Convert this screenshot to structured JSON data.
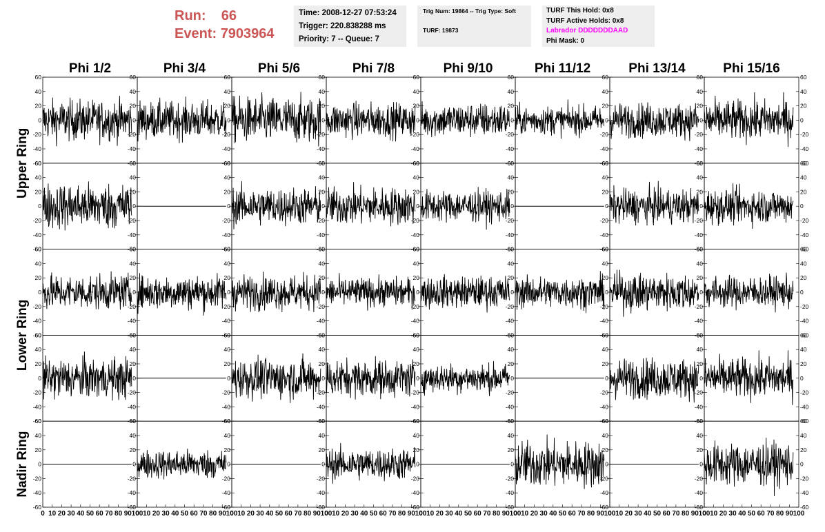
{
  "header": {
    "run_label": "Run:",
    "run_value": "66",
    "event_label": "Event:",
    "event_value": "7903964",
    "time": "Time: 2008-12-27 07:53:24",
    "trigger": "Trigger: 220.838288 ms",
    "priority": "Priority: 7 -- Queue: 7",
    "trig_num": "Trig Num: 19864 -- Trig Type: Soft",
    "turf": "TURF: 19873",
    "turf_this_hold": "TURF This Hold: 0x8",
    "turf_active_holds": "TURF Active Holds: 0x8",
    "labrador": "Labrador DDDDDDDAAD",
    "phi_mask": "Phi Mask: 0",
    "colors": {
      "run": "#cc5555",
      "labrador": "#ff00ff",
      "box_bg": "#eeeeee"
    }
  },
  "chart_data": {
    "type": "line",
    "columns": [
      "Phi 1/2",
      "Phi 3/4",
      "Phi 5/6",
      "Phi 7/8",
      "Phi 9/10",
      "Phi 11/12",
      "Phi 13/14",
      "Phi 15/16"
    ],
    "ring_labels": [
      "Upper Ring",
      "Lower Ring",
      "Nadir Ring"
    ],
    "rows": 5,
    "xlim": [
      0,
      100
    ],
    "ylim": [
      -60,
      60
    ],
    "x_ticks": [
      0,
      10,
      20,
      30,
      40,
      50,
      60,
      70,
      80,
      90,
      100
    ],
    "y_ticks": [
      -60,
      -40,
      -20,
      0,
      20,
      40,
      60
    ],
    "y_tick_labels": [
      "-60",
      "-40",
      "-20",
      "0",
      "20",
      "40",
      "60"
    ],
    "x_tick_labels": [
      "0",
      "10",
      "20",
      "30",
      "40",
      "50",
      "60",
      "70",
      "80",
      "90",
      "100"
    ],
    "waveform_x_range": [
      0,
      94
    ],
    "grid": false,
    "panels": [
      [
        {
          "active": true,
          "amp": 14
        },
        {
          "active": true,
          "amp": 13
        },
        {
          "active": true,
          "amp": 16
        },
        {
          "active": true,
          "amp": 12
        },
        {
          "active": true,
          "amp": 12
        },
        {
          "active": true,
          "amp": 10
        },
        {
          "active": true,
          "amp": 12
        },
        {
          "active": true,
          "amp": 14
        }
      ],
      [
        {
          "active": true,
          "amp": 16
        },
        {
          "active": false,
          "amp": 0
        },
        {
          "active": true,
          "amp": 13
        },
        {
          "active": true,
          "amp": 13
        },
        {
          "active": true,
          "amp": 11
        },
        {
          "active": false,
          "amp": 0
        },
        {
          "active": true,
          "amp": 12
        },
        {
          "active": true,
          "amp": 12
        }
      ],
      [
        {
          "active": true,
          "amp": 12
        },
        {
          "active": true,
          "amp": 12
        },
        {
          "active": true,
          "amp": 12
        },
        {
          "active": true,
          "amp": 10
        },
        {
          "active": true,
          "amp": 11
        },
        {
          "active": true,
          "amp": 11
        },
        {
          "active": true,
          "amp": 13
        },
        {
          "active": true,
          "amp": 11
        }
      ],
      [
        {
          "active": true,
          "amp": 14
        },
        {
          "active": false,
          "amp": 0
        },
        {
          "active": true,
          "amp": 14
        },
        {
          "active": true,
          "amp": 13
        },
        {
          "active": true,
          "amp": 10
        },
        {
          "active": false,
          "amp": 0
        },
        {
          "active": true,
          "amp": 14
        },
        {
          "active": true,
          "amp": 14
        }
      ],
      [
        {
          "active": false,
          "amp": 0
        },
        {
          "active": true,
          "amp": 10
        },
        {
          "active": false,
          "amp": 0
        },
        {
          "active": true,
          "amp": 11
        },
        {
          "active": false,
          "amp": 0
        },
        {
          "active": true,
          "amp": 16
        },
        {
          "active": false,
          "amp": 0
        },
        {
          "active": true,
          "amp": 15
        }
      ]
    ]
  }
}
